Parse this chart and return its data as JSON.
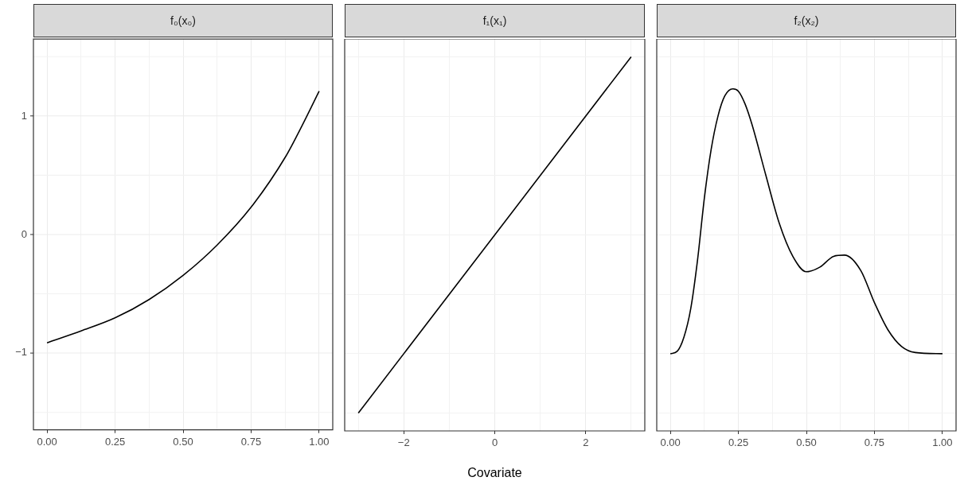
{
  "chart_data": [
    {
      "type": "line",
      "title": "f₀(x₀)",
      "x": [
        0,
        0.125,
        0.25,
        0.375,
        0.5,
        0.625,
        0.75,
        0.875,
        0.9375,
        1
      ],
      "values": [
        -0.915,
        -0.815,
        -0.705,
        -0.55,
        -0.346,
        -0.09,
        0.23,
        0.65,
        0.92,
        1.21
      ],
      "color": "#000000",
      "marker": "none",
      "grid": true,
      "xlim": [
        -0.05,
        1.05
      ],
      "xticks": [
        {
          "value": 0,
          "label": "0.00"
        },
        {
          "value": 0.125,
          "label": null
        },
        {
          "value": 0.25,
          "label": "0.25"
        },
        {
          "value": 0.375,
          "label": null
        },
        {
          "value": 0.5,
          "label": "0.50"
        },
        {
          "value": 0.625,
          "label": null
        },
        {
          "value": 0.75,
          "label": "0.75"
        },
        {
          "value": 0.875,
          "label": null
        },
        {
          "value": 1,
          "label": "1.00"
        }
      ],
      "ylim": [
        -1.65,
        1.65
      ],
      "yticks": [
        {
          "value": -1.5,
          "label": null
        },
        {
          "value": -1,
          "label": "−1"
        },
        {
          "value": -0.5,
          "label": null
        },
        0,
        {
          "value": 0.5,
          "label": null
        },
        1,
        {
          "value": 1.5,
          "label": null
        }
      ]
    },
    {
      "type": "line",
      "title": "f₁(x₁)",
      "xlabel": "Covariate",
      "x": [
        -3,
        3
      ],
      "values": [
        -1.5,
        1.5
      ],
      "color": "#000000",
      "marker": "none",
      "grid": true,
      "tick_labels": "x",
      "xlim": [
        -3.3,
        3.3
      ],
      "xticks": [
        {
          "value": -3,
          "label": null
        },
        {
          "value": -2,
          "label": "−2"
        },
        {
          "value": -1,
          "label": null
        },
        0,
        {
          "value": 1,
          "label": null
        },
        2,
        {
          "value": 3,
          "label": null
        }
      ],
      "ylim": [
        -1.65,
        1.65
      ],
      "yticks": [
        {
          "value": -1.5,
          "label": null
        },
        {
          "value": -1,
          "label": null
        },
        {
          "value": -0.5,
          "label": null
        },
        {
          "value": 0,
          "label": null
        },
        {
          "value": 0.5,
          "label": null
        },
        {
          "value": 1,
          "label": null
        },
        {
          "value": 1.5,
          "label": null
        }
      ]
    },
    {
      "type": "line",
      "title": "f₂(x₂)",
      "x": [
        0,
        0.025,
        0.05,
        0.075,
        0.1,
        0.125,
        0.15,
        0.175,
        0.2,
        0.23,
        0.25,
        0.275,
        0.3,
        0.35,
        0.4,
        0.45,
        0.5,
        0.55,
        0.6,
        0.64,
        0.7,
        0.75,
        0.8,
        0.85,
        0.9,
        1
      ],
      "values": [
        -1.0,
        -0.98,
        -0.86,
        -0.62,
        -0.21,
        0.31,
        0.72,
        1.0,
        1.17,
        1.23,
        1.21,
        1.1,
        0.93,
        0.51,
        0.1,
        -0.18,
        -0.31,
        -0.27,
        -0.18,
        -0.17,
        -0.3,
        -0.57,
        -0.8,
        -0.94,
        -0.99,
        -1.0
      ],
      "color": "#000000",
      "marker": "none",
      "grid": true,
      "tick_labels": "x",
      "xlim": [
        -0.05,
        1.05
      ],
      "xticks": [
        {
          "value": 0,
          "label": "0.00"
        },
        {
          "value": 0.125,
          "label": null
        },
        {
          "value": 0.25,
          "label": "0.25"
        },
        {
          "value": 0.375,
          "label": null
        },
        {
          "value": 0.5,
          "label": "0.50"
        },
        {
          "value": 0.625,
          "label": null
        },
        {
          "value": 0.75,
          "label": "0.75"
        },
        {
          "value": 0.875,
          "label": null
        },
        {
          "value": 1,
          "label": "1.00"
        }
      ],
      "ylim": [
        -1.65,
        1.65
      ],
      "yticks": [
        {
          "value": -1.5,
          "label": null
        },
        {
          "value": -1,
          "label": null
        },
        {
          "value": -0.5,
          "label": null
        },
        {
          "value": 0,
          "label": null
        },
        {
          "value": 0.5,
          "label": null
        },
        {
          "value": 1,
          "label": null
        },
        {
          "value": 1.5,
          "label": null
        }
      ]
    }
  ]
}
